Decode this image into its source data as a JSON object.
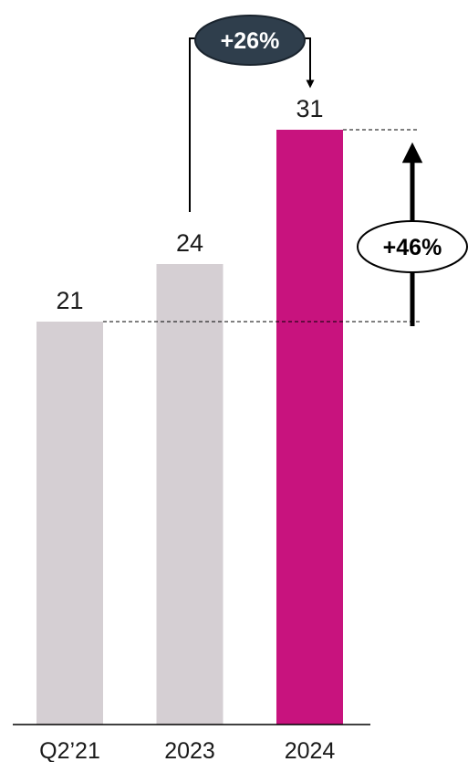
{
  "chart_data": {
    "type": "bar",
    "categories": [
      "Q2’21",
      "2023",
      "2024"
    ],
    "values": [
      21,
      24,
      31
    ],
    "value_labels": [
      "21",
      "24",
      "31"
    ],
    "ylim": [
      0,
      33
    ],
    "grid": false,
    "colors": {
      "default_bar": "#d5cfd3",
      "highlight_bar": "#c8137e",
      "badge_dark": "#2f3e4c",
      "text": "#1a1a1a"
    },
    "highlight_index": 2,
    "annotations": [
      {
        "text": "+26%",
        "from": "2023",
        "to": "2024",
        "style": "dark-pill"
      },
      {
        "text": "+46%",
        "from": "Q2’21",
        "to": "2024",
        "style": "outline-pill"
      }
    ]
  }
}
